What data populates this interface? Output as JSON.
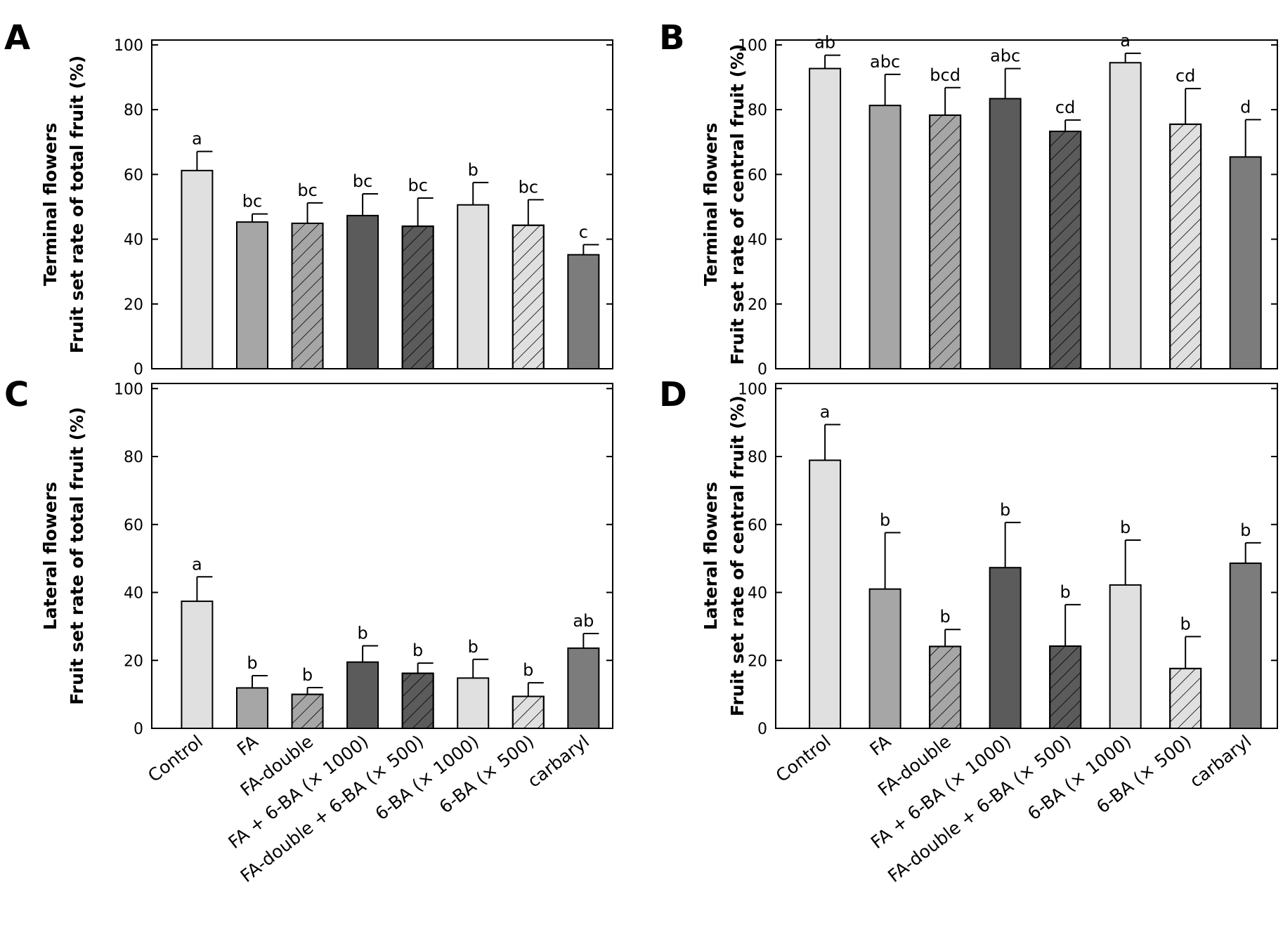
{
  "chart_data": [
    {
      "type": "bar",
      "panel": "A",
      "ylabel": [
        "Terminal flowers",
        "Fruit set rate of total fruit (%)"
      ],
      "ylim": [
        0,
        100
      ],
      "yticks": [
        0,
        20,
        40,
        60,
        80,
        100
      ],
      "categories": [
        "Control",
        "FA",
        "FA-double",
        "FA + 6-BA (× 1000)",
        "FA-double + 6-BA (× 500)",
        "6-BA (× 1000)",
        "6-BA (× 500)",
        "carbaryl"
      ],
      "values": [
        61.2,
        45.3,
        44.9,
        47.3,
        44.0,
        50.6,
        44.3,
        35.2
      ],
      "errors": [
        5.9,
        2.5,
        6.3,
        6.7,
        8.7,
        6.9,
        7.9,
        3.1
      ],
      "letters": [
        "a",
        "bc",
        "bc",
        "bc",
        "bc",
        "b",
        "bc",
        "c"
      ],
      "show_xlabels": false
    },
    {
      "type": "bar",
      "panel": "B",
      "ylabel": [
        "Terminal flowers",
        "Fruit set rate of central fruit (%)"
      ],
      "ylim": [
        0,
        100
      ],
      "yticks": [
        0,
        20,
        40,
        60,
        80,
        100
      ],
      "categories": [
        "Control",
        "FA",
        "FA-double",
        "FA + 6-BA (× 1000)",
        "FA-double + 6-BA (× 500)",
        "6-BA (× 1000)",
        "6-BA (× 500)",
        "carbaryl"
      ],
      "values": [
        92.7,
        81.3,
        78.3,
        83.4,
        73.3,
        94.5,
        75.5,
        65.4
      ],
      "errors": [
        4.1,
        9.6,
        8.5,
        9.3,
        3.5,
        2.9,
        11.0,
        11.5
      ],
      "letters": [
        "ab",
        "abc",
        "bcd",
        "abc",
        "cd",
        "a",
        "cd",
        "d"
      ],
      "show_xlabels": false
    },
    {
      "type": "bar",
      "panel": "C",
      "ylabel": [
        "Lateral flowers",
        "Fruit set rate of total fruit (%)"
      ],
      "ylim": [
        0,
        100
      ],
      "yticks": [
        0,
        20,
        40,
        60,
        80,
        100
      ],
      "categories": [
        "Control",
        "FA",
        "FA-double",
        "FA + 6-BA (× 1000)",
        "FA-double + 6-BA (× 500)",
        "6-BA (× 1000)",
        "6-BA (× 500)",
        "carbaryl"
      ],
      "values": [
        37.4,
        11.9,
        10.0,
        19.5,
        16.2,
        14.8,
        9.4,
        23.6
      ],
      "errors": [
        7.2,
        3.6,
        2.0,
        4.8,
        3.0,
        5.5,
        4.0,
        4.3
      ],
      "letters": [
        "a",
        "b",
        "b",
        "b",
        "b",
        "b",
        "b",
        "ab"
      ],
      "show_xlabels": true
    },
    {
      "type": "bar",
      "panel": "D",
      "ylabel": [
        "Lateral flowers",
        "Fruit set rate of central fruit (%)"
      ],
      "ylim": [
        0,
        100
      ],
      "yticks": [
        0,
        20,
        40,
        60,
        80,
        100
      ],
      "categories": [
        "Control",
        "FA",
        "FA-double",
        "FA + 6-BA (× 1000)",
        "FA-double + 6-BA (× 500)",
        "6-BA (× 1000)",
        "6-BA (× 500)",
        "carbaryl"
      ],
      "values": [
        78.9,
        41.0,
        24.1,
        47.3,
        24.2,
        42.2,
        17.6,
        48.6
      ],
      "errors": [
        10.5,
        16.6,
        5.0,
        13.3,
        12.2,
        13.2,
        9.4,
        6.0
      ],
      "letters": [
        "a",
        "b",
        "b",
        "b",
        "b",
        "b",
        "b",
        "b"
      ],
      "show_xlabels": true
    }
  ],
  "styles": {
    "fills": [
      "#e0e0e0",
      "#a6a6a6",
      "#a6a6a6",
      "#5b5b5b",
      "#5b5b5b",
      "#e0e0e0",
      "#e0e0e0",
      "#7c7c7c"
    ],
    "hatched": [
      false,
      false,
      true,
      false,
      true,
      false,
      true,
      false
    ]
  }
}
